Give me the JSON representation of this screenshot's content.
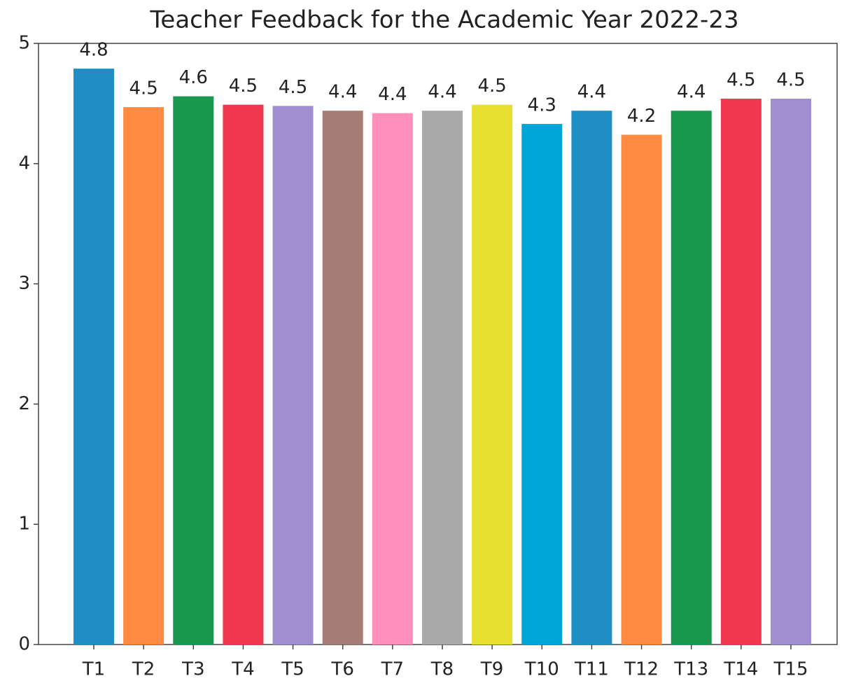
{
  "chart_data": {
    "type": "bar",
    "title": "Teacher Feedback for the Academic Year 2022-23",
    "categories": [
      "T1",
      "T2",
      "T3",
      "T4",
      "T5",
      "T6",
      "T7",
      "T8",
      "T9",
      "T10",
      "T11",
      "T12",
      "T13",
      "T14",
      "T15"
    ],
    "values": [
      4.79,
      4.47,
      4.56,
      4.49,
      4.48,
      4.44,
      4.42,
      4.44,
      4.49,
      4.33,
      4.44,
      4.24,
      4.44,
      4.54,
      4.54
    ],
    "value_labels": [
      "4.8",
      "4.5",
      "4.6",
      "4.5",
      "4.5",
      "4.4",
      "4.4",
      "4.4",
      "4.5",
      "4.3",
      "4.4",
      "4.2",
      "4.4",
      "4.5",
      "4.5"
    ],
    "colors": [
      "#1f8ec4",
      "#ff8c42",
      "#1a9850",
      "#f0394e",
      "#a08fd0",
      "#a67d74",
      "#ff8fba",
      "#a8a8a8",
      "#e8e030",
      "#00a6d6",
      "#1f8ec4",
      "#ff8c42",
      "#1a9850",
      "#f0394e",
      "#a08fd0"
    ],
    "ylim": [
      0,
      5
    ],
    "yticks": [
      0,
      1,
      2,
      3,
      4,
      5
    ],
    "grid": false
  }
}
